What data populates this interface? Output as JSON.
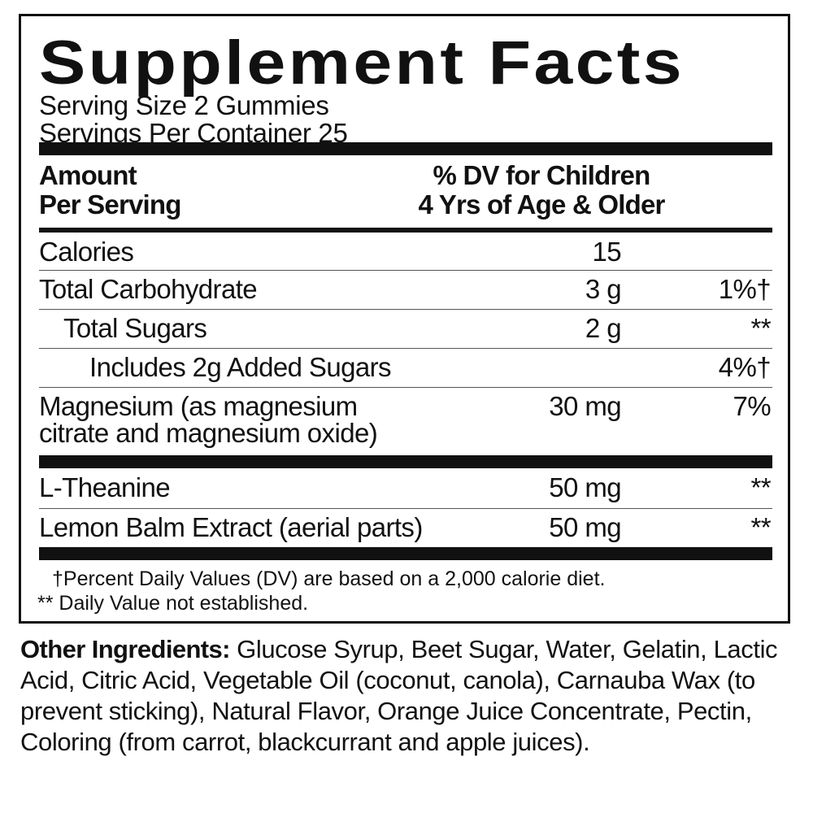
{
  "title": "Supplement Facts",
  "serving_size": "Serving Size 2 Gummies",
  "servings_per_container": "Servings Per Container 25",
  "header": {
    "amount_line1": "Amount",
    "amount_line2": "Per Serving",
    "dv_line1": "% DV for Children",
    "dv_line2": "4 Yrs of Age & Older"
  },
  "rows": [
    {
      "name": "Calories",
      "amount": "15",
      "dv": ""
    },
    {
      "name": "Total Carbohydrate",
      "amount": "3 g",
      "dv": "1%†"
    },
    {
      "name": "Total Sugars",
      "amount": "2 g",
      "dv": "**"
    },
    {
      "name": "Includes 2g Added Sugars",
      "amount": "",
      "dv": "4%†"
    },
    {
      "name_line1": "Magnesium (as magnesium",
      "name_line2": "citrate and magnesium oxide)",
      "amount": "30 mg",
      "dv": "7%"
    },
    {
      "name": "L-Theanine",
      "amount": "50 mg",
      "dv": "**"
    },
    {
      "name": "Lemon Balm Extract (aerial parts)",
      "amount": "50 mg",
      "dv": "**"
    }
  ],
  "footnotes": {
    "dagger": "†Percent Daily Values (DV) are based on a 2,000 calorie diet.",
    "double_star": "** Daily Value not established."
  },
  "other_ingredients": {
    "label": "Other Ingredients:",
    "text": " Glucose Syrup, Beet Sugar, Water, Gelatin, Lactic Acid, Citric Acid, Vegetable Oil (coconut, canola), Carnauba Wax (to prevent sticking), Natural Flavor, Orange Juice Concentrate, Pectin, Coloring (from carrot, blackcurrant and apple juices)."
  }
}
